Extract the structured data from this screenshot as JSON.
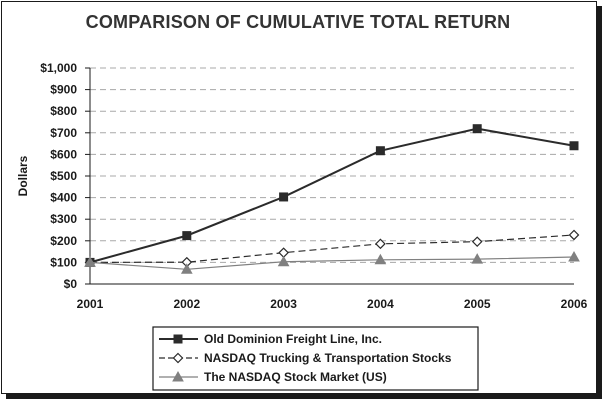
{
  "chart_data": {
    "type": "line",
    "title": "COMPARISON OF CUMULATIVE TOTAL RETURN",
    "ylabel": "Dollars",
    "xlabel": "",
    "x": [
      "2001",
      "2002",
      "2003",
      "2004",
      "2005",
      "2006"
    ],
    "ylim": [
      0,
      1000
    ],
    "yticks": [
      "$0",
      "$100",
      "$200",
      "$300",
      "$400",
      "$500",
      "$600",
      "$700",
      "$800",
      "$900",
      "$1,000"
    ],
    "ytick_values": [
      0,
      100,
      200,
      300,
      400,
      500,
      600,
      700,
      800,
      900,
      1000
    ],
    "grid": "horizontal dashed",
    "legend_position": "bottom",
    "series": [
      {
        "name": "Old Dominion Freight Line, Inc.",
        "values": [
          100,
          224,
          403,
          617,
          719,
          640
        ],
        "color": "#2b2b2b",
        "line_style": "solid",
        "marker": "square"
      },
      {
        "name": "NASDAQ Trucking & Transportation Stocks",
        "values": [
          100,
          101,
          145,
          186,
          196,
          227
        ],
        "color": "#2b2b2b",
        "line_style": "dashed",
        "marker": "diamond-open"
      },
      {
        "name": "The NASDAQ Stock Market (US)",
        "values": [
          100,
          68,
          103,
          112,
          115,
          125
        ],
        "color": "#808080",
        "line_style": "solid",
        "marker": "triangle"
      }
    ]
  }
}
